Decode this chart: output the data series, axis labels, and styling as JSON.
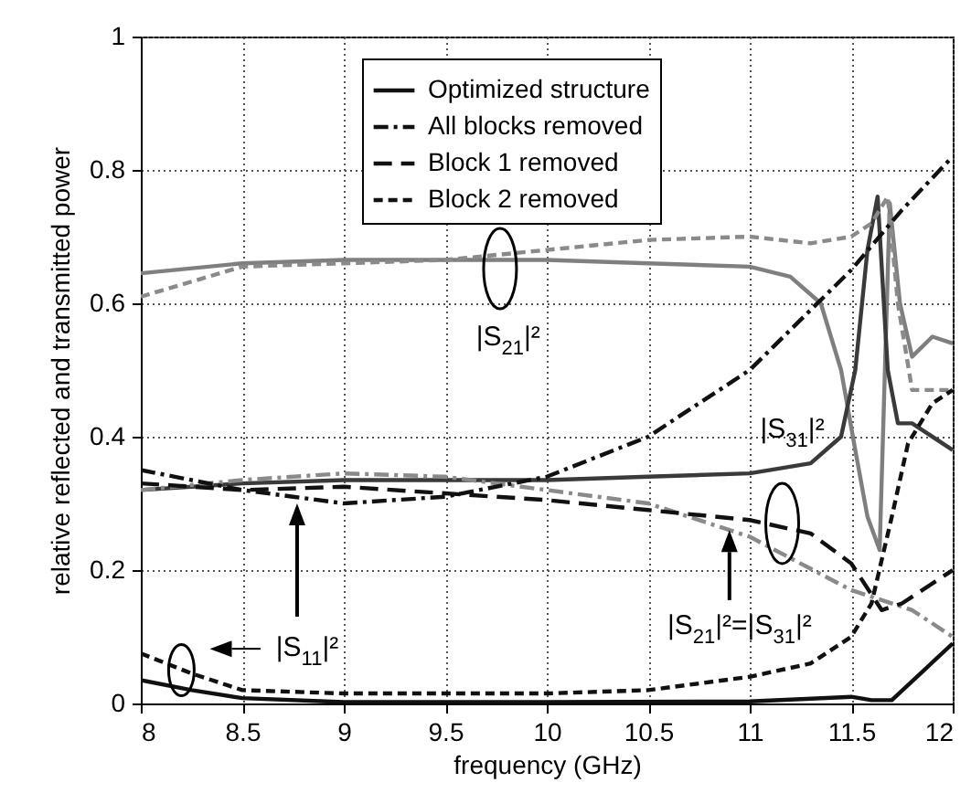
{
  "chart_data": {
    "type": "line",
    "xlabel": "frequency (GHz)",
    "ylabel": "relative reflected and transmitted power",
    "xlim": [
      8,
      12
    ],
    "ylim": [
      0,
      1
    ],
    "xticks": [
      8,
      8.5,
      9,
      9.5,
      10,
      10.5,
      11,
      11.5,
      12
    ],
    "yticks": [
      0,
      0.2,
      0.4,
      0.6,
      0.8,
      1
    ],
    "grid": true,
    "legend": "top right",
    "series": [
      {
        "color": "#7f7f7f",
        "line_style": "solid",
        "x": [
          8,
          8.5,
          9,
          9.5,
          10,
          10.5,
          11,
          11.2,
          11.35,
          11.45,
          11.52,
          11.58,
          11.64,
          11.69,
          11.74,
          11.8,
          11.9,
          12
        ],
        "values": [
          0.645,
          0.66,
          0.665,
          0.665,
          0.665,
          0.66,
          0.655,
          0.64,
          0.6,
          0.5,
          0.38,
          0.28,
          0.23,
          0.75,
          0.6,
          0.52,
          0.55,
          0.54
        ]
      },
      {
        "color": "#3a3a3a",
        "line_style": "solid",
        "x": [
          8,
          8.5,
          9,
          9.5,
          10,
          10.5,
          11,
          11.3,
          11.45,
          11.52,
          11.58,
          11.63,
          11.68,
          11.73,
          11.8,
          12
        ],
        "values": [
          0.32,
          0.33,
          0.335,
          0.335,
          0.335,
          0.34,
          0.345,
          0.36,
          0.4,
          0.5,
          0.68,
          0.76,
          0.5,
          0.42,
          0.42,
          0.38
        ]
      },
      {
        "name": "Optimized structure",
        "color": "#111111",
        "line_style": "solid",
        "x": [
          8,
          8.25,
          8.5,
          9,
          10,
          11,
          11.5,
          11.6,
          11.7,
          12
        ],
        "values": [
          0.035,
          0.02,
          0.008,
          0.002,
          0.002,
          0.003,
          0.01,
          0.005,
          0.005,
          0.09
        ]
      },
      {
        "name": "All blocks removed",
        "color": "#111111",
        "line_style": "dashdot",
        "x": [
          8,
          8.5,
          8.75,
          9,
          9.5,
          10,
          10.5,
          11,
          11.5,
          11.75,
          12
        ],
        "values": [
          0.35,
          0.32,
          0.31,
          0.3,
          0.31,
          0.34,
          0.4,
          0.5,
          0.65,
          0.74,
          0.82
        ]
      },
      {
        "color": "#8a8a8a",
        "line_style": "dashdot",
        "x": [
          8,
          8.5,
          9,
          9.5,
          10,
          10.5,
          11,
          11.5,
          11.8,
          12
        ],
        "values": [
          0.32,
          0.335,
          0.345,
          0.34,
          0.32,
          0.3,
          0.25,
          0.17,
          0.14,
          0.1
        ]
      },
      {
        "color": "#8a8a8a",
        "line_style": "dashed",
        "x": [
          8,
          8.5,
          9,
          9.5,
          10,
          10.5,
          11,
          11.3,
          11.5,
          11.6,
          11.68,
          11.73,
          11.8,
          12
        ],
        "values": [
          0.61,
          0.655,
          0.66,
          0.665,
          0.68,
          0.695,
          0.7,
          0.69,
          0.7,
          0.72,
          0.76,
          0.6,
          0.47,
          0.47
        ]
      },
      {
        "name": "Block 1 removed",
        "color": "#111111",
        "line_style": "longdash",
        "x": [
          8,
          8.5,
          9,
          9.5,
          10,
          10.5,
          11,
          11.3,
          11.5,
          11.65,
          11.75,
          12
        ],
        "values": [
          0.33,
          0.32,
          0.325,
          0.315,
          0.305,
          0.29,
          0.275,
          0.255,
          0.21,
          0.14,
          0.15,
          0.2
        ]
      },
      {
        "name": "Block 2 removed",
        "color": "#111111",
        "line_style": "dashed",
        "x": [
          8,
          8.25,
          8.5,
          9,
          10,
          10.5,
          11,
          11.3,
          11.5,
          11.6,
          11.7,
          11.78,
          11.9,
          12
        ],
        "values": [
          0.075,
          0.045,
          0.02,
          0.015,
          0.015,
          0.02,
          0.04,
          0.06,
          0.1,
          0.15,
          0.28,
          0.39,
          0.45,
          0.47
        ]
      }
    ],
    "annotations": [
      "|S$_{21}$|²",
      "|S$_{31}$|²",
      "|S$_{11}$|²",
      "|S$_{21}$|²=|S$_{31}$|²"
    ]
  }
}
